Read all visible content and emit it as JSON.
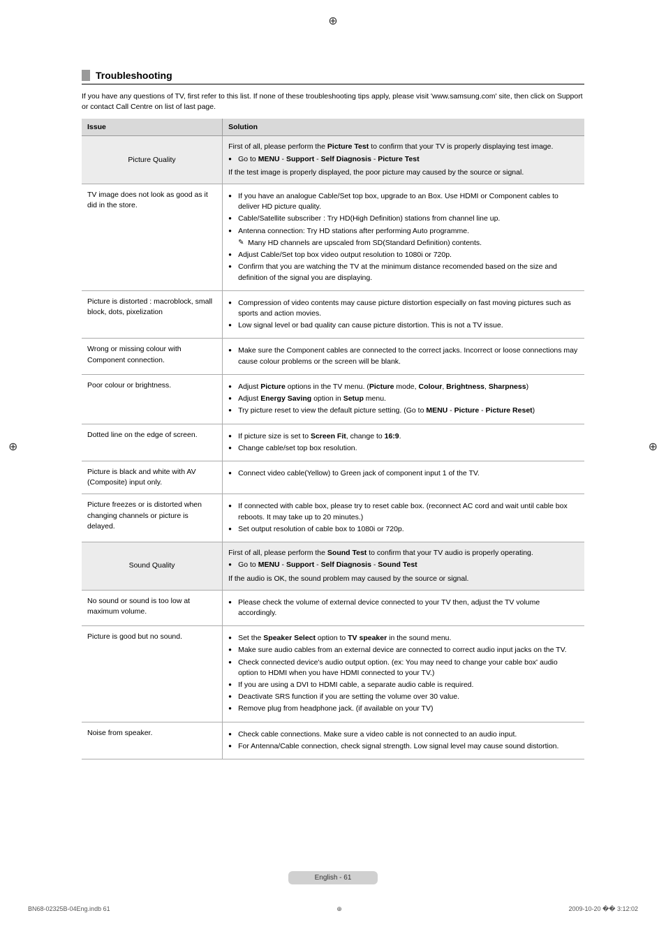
{
  "registration_mark": "⊕",
  "section": {
    "title": "Troubleshooting",
    "intro": "If you have any questions of TV, first refer to this list. If none of these troubleshooting tips apply, please visit 'www.samsung.com' site, then click on Support or contact Call Centre on list of last page."
  },
  "table": {
    "headers": {
      "issue": "Issue",
      "solution": "Solution"
    },
    "rows": [
      {
        "shaded": true,
        "issue": "Picture Quality",
        "pre": "First of all, please perform the ",
        "pre_bold": "Picture Test",
        "pre_after": " to confirm that your TV is properly displaying test image.",
        "bullets": [
          {
            "html": "Go to <b>MENU</b> - <b>Support</b> - <b>Self Diagnosis</b> - <b>Picture Test</b>"
          }
        ],
        "post": "If the test image is properly displayed, the poor picture may caused by the source or signal."
      },
      {
        "issue": "TV image does not look as good as it did in the store.",
        "bullets": [
          {
            "text": "If you have an analogue Cable/Set top box, upgrade to an Box. Use HDMI or Component cables to deliver HD picture quality."
          },
          {
            "text": "Cable/Satellite subscriber : Try HD(High Definition) stations from channel line up."
          },
          {
            "text": "Antenna connection: Try HD stations after performing Auto programme.",
            "note": "Many HD channels are upscaled from SD(Standard Definition) contents."
          },
          {
            "text": "Adjust Cable/Set top box video output resolution to 1080i or 720p."
          },
          {
            "text": "Confirm that you are watching the TV at the minimum distance recomended based on the size and definition of the signal you are displaying."
          }
        ]
      },
      {
        "issue": "Picture is distorted : macroblock, small block, dots, pixelization",
        "bullets": [
          {
            "text": "Compression of video contents may cause picture distortion especially on fast moving pictures such as sports and action movies."
          },
          {
            "text": "Low signal level or bad quality can cause picture distortion. This is not a TV issue."
          }
        ]
      },
      {
        "issue": "Wrong or missing colour with Component connection.",
        "bullets": [
          {
            "text": "Make sure the Component cables are connected to the correct jacks. Incorrect or loose connections may cause colour problems or the screen will be blank."
          }
        ]
      },
      {
        "issue": "Poor colour or brightness.",
        "bullets": [
          {
            "html": "Adjust <b>Picture</b> options in the TV menu. (<b>Picture</b> mode, <b>Colour</b>, <b>Brightness</b>, <b>Sharpness</b>)"
          },
          {
            "html": "Adjust <b>Energy Saving</b> option in <b>Setup</b> menu."
          },
          {
            "html": "Try picture reset to view the default picture setting. (Go to <b>MENU</b> - <b>Picture</b> - <b>Picture Reset</b>)"
          }
        ]
      },
      {
        "issue": "Dotted line on the edge of screen.",
        "bullets": [
          {
            "html": "If picture size is set to <b>Screen Fit</b>, change to <b>16:9</b>."
          },
          {
            "text": "Change cable/set top box resolution."
          }
        ]
      },
      {
        "issue": "Picture is black and white with AV (Composite) input only.",
        "bullets": [
          {
            "text": "Connect video cable(Yellow) to Green jack of component input 1 of the TV."
          }
        ]
      },
      {
        "issue": "Picture freezes or is distorted when changing channels or picture is delayed.",
        "bullets": [
          {
            "text": "If connected with cable box, please try to reset cable box. (reconnect AC cord and wait until cable box reboots. It may take up to 20 minutes.)"
          },
          {
            "text": "Set output resolution of cable box to 1080i or 720p."
          }
        ]
      },
      {
        "shaded": true,
        "issue": "Sound Quality",
        "pre": "First of all, please perform the ",
        "pre_bold": "Sound Test",
        "pre_after": " to confirm that your TV audio is properly operating.",
        "bullets": [
          {
            "html": "Go to <b>MENU</b> - <b>Support</b> - <b>Self Diagnosis</b> - <b>Sound Test</b>"
          }
        ],
        "post": "If the audio is OK, the sound problem may caused by the source or signal."
      },
      {
        "issue": "No sound or sound is too low at maximum volume.",
        "bullets": [
          {
            "text": "Please check the volume of external device connected to your TV then, adjust the TV volume accordingly."
          }
        ]
      },
      {
        "issue": "Picture is good but no sound.",
        "bullets": [
          {
            "html": "Set the <b>Speaker Select</b> option to <b>TV speaker</b> in the sound menu."
          },
          {
            "text": "Make sure audio cables from an external device are connected to correct audio input jacks on the TV."
          },
          {
            "text": "Check connected device's audio output option. (ex: You may need to change your cable box' audio option to HDMI when you have HDMI connected to your TV.)"
          },
          {
            "text": "If you are using a DVI to HDMI cable, a separate audio cable is required."
          },
          {
            "text": "Deactivate SRS function if you are setting the volume over 30 value."
          },
          {
            "text": "Remove plug from headphone jack. (if available on your TV)"
          }
        ]
      },
      {
        "issue": "Noise from speaker.",
        "bullets": [
          {
            "text": "Check cable connections. Make sure a video cable is not connected to an audio input."
          },
          {
            "text": "For Antenna/Cable connection, check signal strength. Low signal level may cause sound distortion."
          }
        ]
      }
    ]
  },
  "footer": {
    "page_label": "English - 61",
    "meta_left": "BN68-02325B-04Eng.indb   61",
    "meta_right": "2009-10-20   �� 3:12:02"
  }
}
